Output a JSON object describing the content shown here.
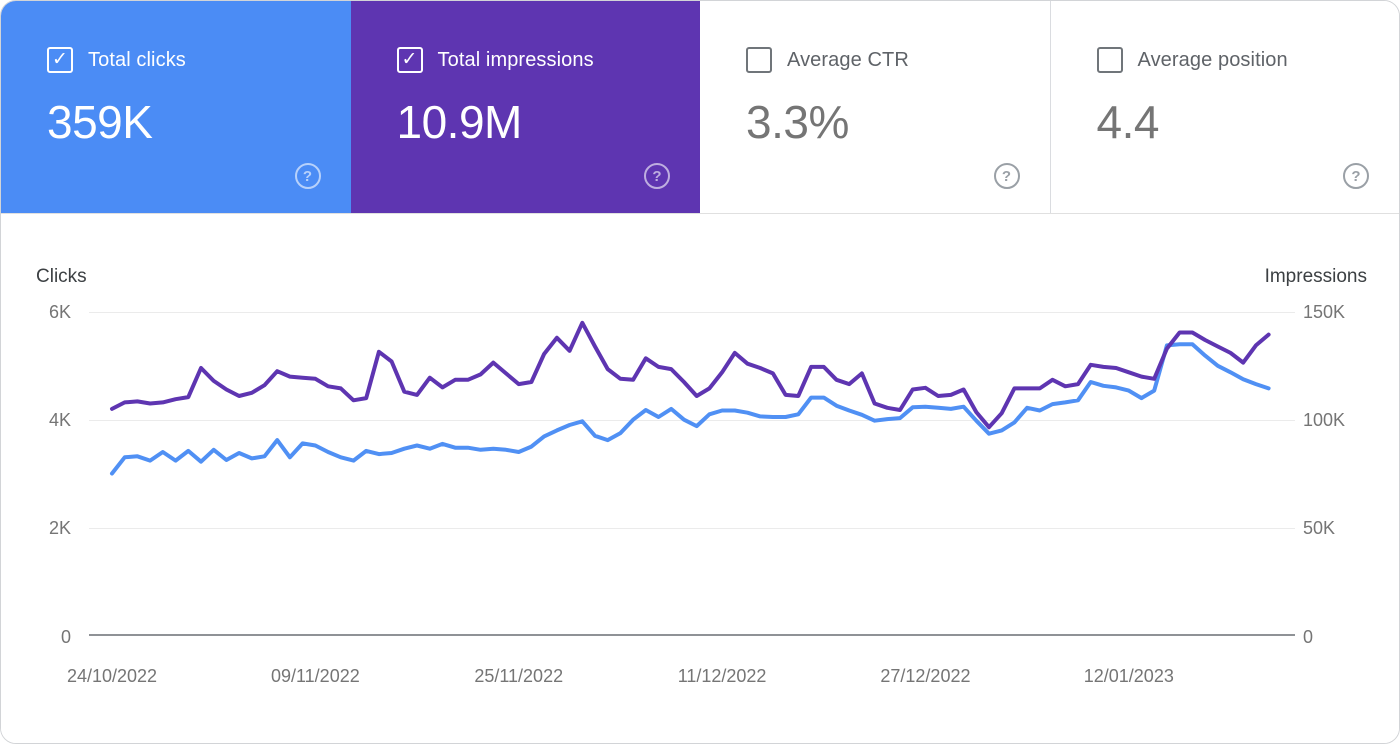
{
  "cards": [
    {
      "label": "Total clicks",
      "value": "359K",
      "checked": true,
      "bg": "#4b8cf5"
    },
    {
      "label": "Total impressions",
      "value": "10.9M",
      "checked": true,
      "bg": "#5e35b1"
    },
    {
      "label": "Average CTR",
      "value": "3.3%",
      "checked": false,
      "bg": null
    },
    {
      "label": "Average position",
      "value": "4.4",
      "checked": false,
      "bg": null
    }
  ],
  "chart": {
    "left_axis_title": "Clicks",
    "right_axis_title": "Impressions",
    "left_ticks": [
      "6K",
      "4K",
      "2K",
      "0"
    ],
    "right_ticks": [
      "150K",
      "100K",
      "50K",
      "0"
    ]
  },
  "chart_data": {
    "type": "line",
    "x_unit": "day",
    "x_start_date": "24/10/2022",
    "x_tick_labels": [
      "24/10/2022",
      "09/11/2022",
      "25/11/2022",
      "11/12/2022",
      "27/12/2022",
      "12/01/2023"
    ],
    "x_tick_day_index": [
      0,
      16,
      32,
      48,
      64,
      80
    ],
    "grid": true,
    "left_ylim": [
      0,
      6000
    ],
    "right_ylim": [
      0,
      150000
    ],
    "series": [
      {
        "name": "Clicks",
        "axis": "left",
        "color": "#5090f4",
        "values": [
          3000,
          3300,
          3320,
          3240,
          3400,
          3240,
          3420,
          3220,
          3440,
          3250,
          3380,
          3280,
          3320,
          3620,
          3300,
          3560,
          3520,
          3400,
          3300,
          3240,
          3420,
          3360,
          3380,
          3460,
          3520,
          3460,
          3550,
          3480,
          3480,
          3440,
          3460,
          3440,
          3400,
          3500,
          3690,
          3800,
          3900,
          3970,
          3700,
          3620,
          3750,
          4000,
          4180,
          4050,
          4200,
          4000,
          3880,
          4100,
          4170,
          4170,
          4130,
          4060,
          4050,
          4050,
          4100,
          4410,
          4410,
          4260,
          4170,
          4090,
          3980,
          4010,
          4030,
          4230,
          4240,
          4220,
          4200,
          4240,
          3980,
          3740,
          3800,
          3950,
          4220,
          4170,
          4290,
          4320,
          4360,
          4700,
          4630,
          4600,
          4540,
          4400,
          4540,
          5380,
          5400,
          5400,
          5190,
          5000,
          4880,
          4750,
          4660,
          4580
        ]
      },
      {
        "name": "Impressions",
        "axis": "right",
        "color": "#5e35b1",
        "values": [
          105000,
          108000,
          108500,
          107500,
          108000,
          109500,
          110500,
          124000,
          118000,
          114000,
          111000,
          112500,
          116000,
          122500,
          120000,
          119500,
          119000,
          115500,
          114500,
          109000,
          110000,
          131500,
          127000,
          113000,
          111500,
          119500,
          115000,
          118500,
          118500,
          121000,
          126500,
          121500,
          116500,
          117500,
          130500,
          138000,
          132000,
          145000,
          134000,
          123500,
          119000,
          118500,
          128500,
          124500,
          123500,
          117500,
          111000,
          114500,
          122000,
          131000,
          126000,
          124000,
          121500,
          111500,
          111000,
          124500,
          124500,
          118500,
          116500,
          121500,
          107500,
          105500,
          104500,
          114000,
          114800,
          111000,
          111500,
          114000,
          103500,
          96500,
          103000,
          114500,
          114500,
          114500,
          118500,
          115500,
          116500,
          125500,
          124500,
          124000,
          122000,
          120000,
          119000,
          133000,
          140500,
          140500,
          137000,
          134000,
          131000,
          126500,
          134500,
          139500
        ]
      }
    ]
  }
}
